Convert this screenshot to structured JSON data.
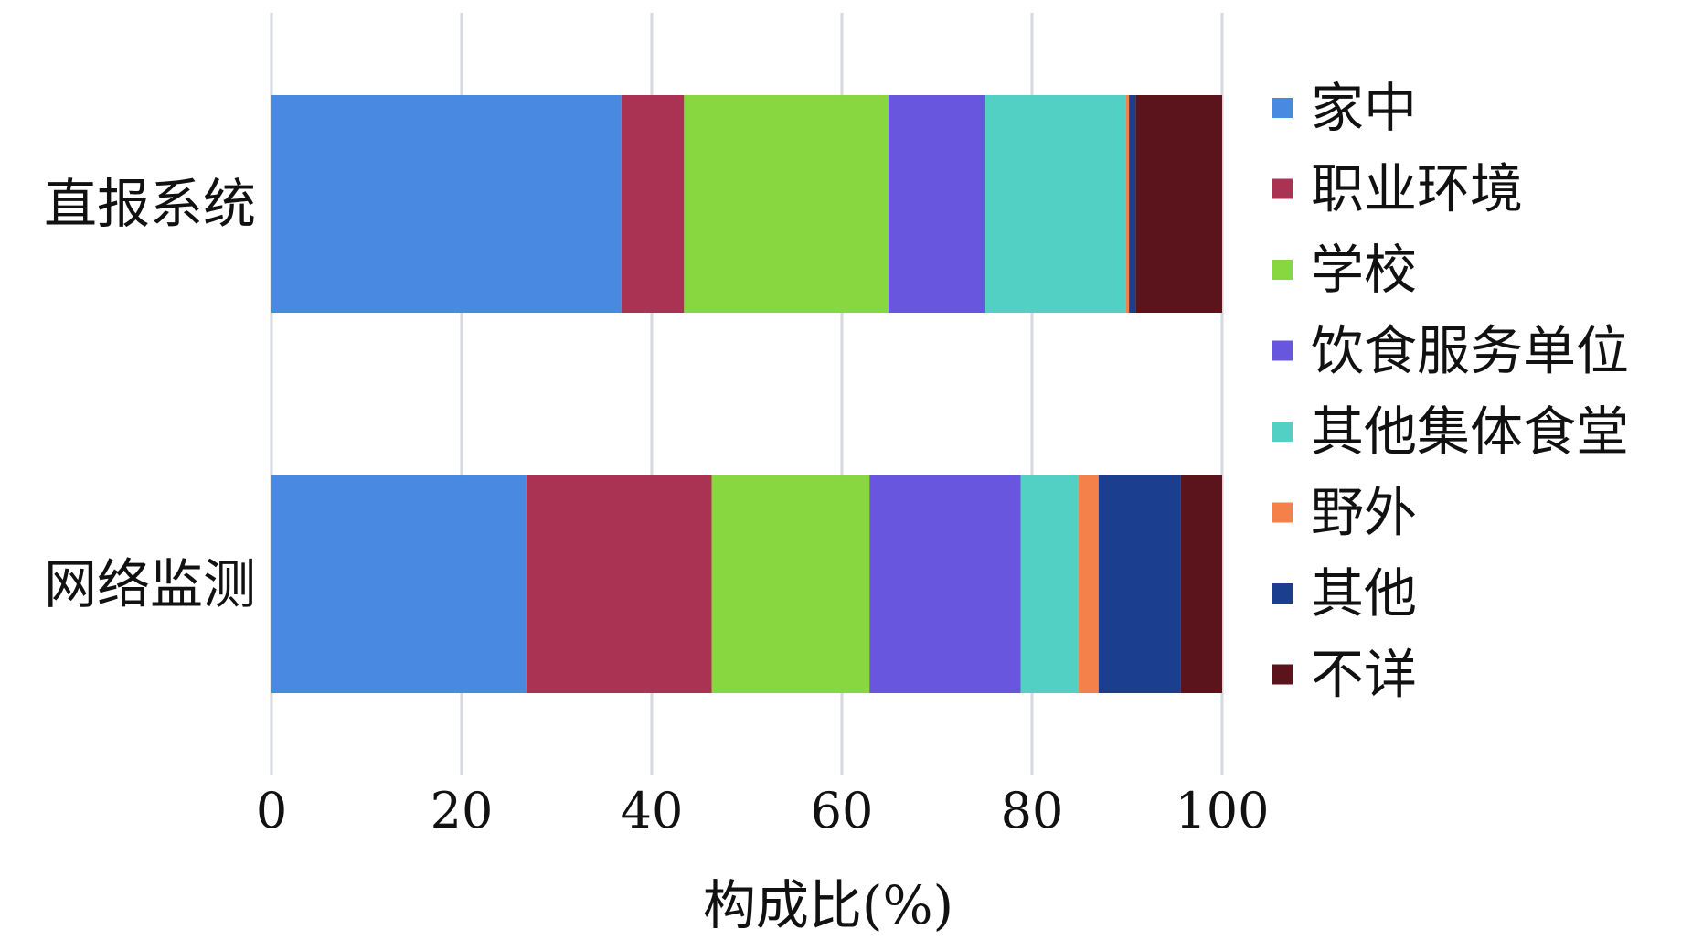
{
  "chart_data": {
    "type": "bar",
    "orientation": "horizontal",
    "stacked": true,
    "title": "",
    "xlabel": "构成比(%)",
    "ylabel": "",
    "xlim": [
      0,
      100
    ],
    "xticks": [
      0,
      20,
      40,
      60,
      80,
      100
    ],
    "grid": "vertical",
    "legend_position": "right",
    "categories": [
      "直报系统",
      "网络监测"
    ],
    "series": [
      {
        "name": "家中",
        "color": "#4A89E2",
        "values": [
          36.8,
          26.8
        ]
      },
      {
        "name": "职业环境",
        "color": "#AA3354",
        "values": [
          6.6,
          19.5
        ]
      },
      {
        "name": "学校",
        "color": "#88D640",
        "values": [
          21.5,
          16.6
        ]
      },
      {
        "name": "饮食服务单位",
        "color": "#6857DE",
        "values": [
          10.2,
          15.9
        ]
      },
      {
        "name": "其他集体食堂",
        "color": "#53D0C4",
        "values": [
          14.8,
          6.1
        ]
      },
      {
        "name": "野外",
        "color": "#F4804A",
        "values": [
          0.3,
          2.1
        ]
      },
      {
        "name": "其他",
        "color": "#1B3F8E",
        "values": [
          0.7,
          8.6
        ]
      },
      {
        "name": "不详",
        "color": "#5B141C",
        "values": [
          9.1,
          4.4
        ]
      }
    ]
  }
}
